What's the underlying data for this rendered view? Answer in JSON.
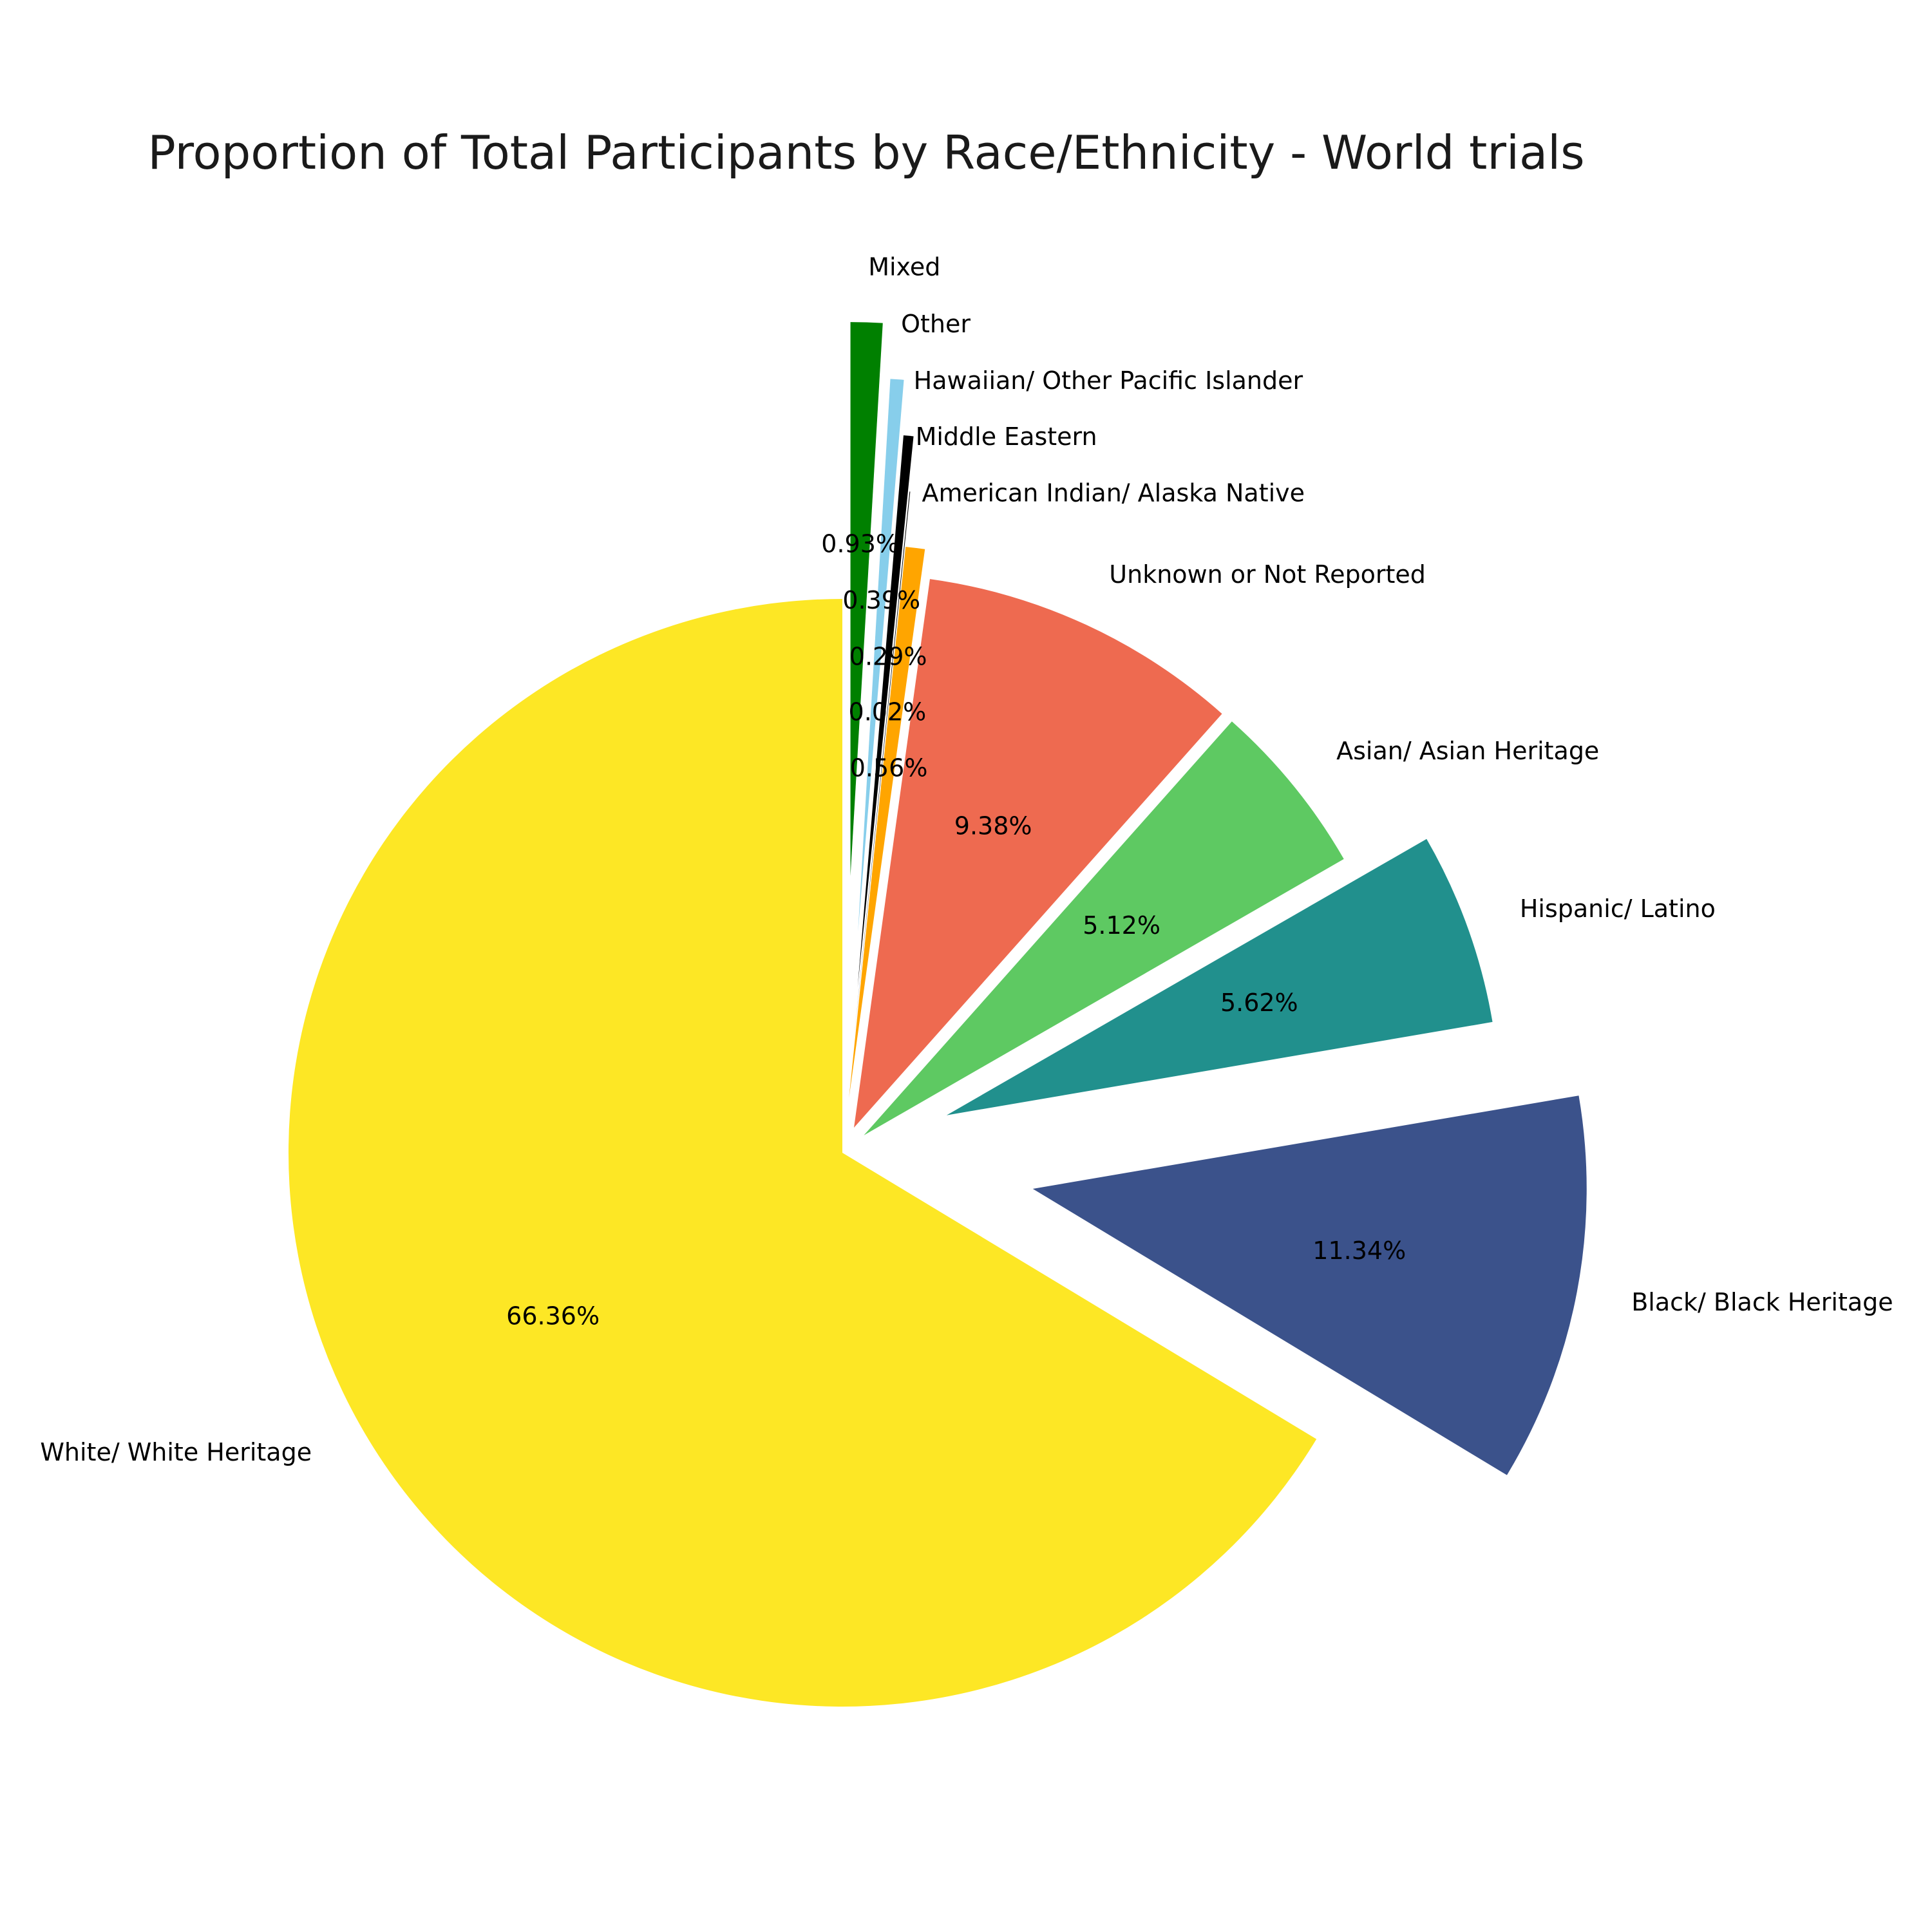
{
  "chart_data": {
    "type": "pie",
    "title": "Proportion of Total Participants by Race/Ethnicity - World trials",
    "start_angle_deg": 90,
    "direction": "clockwise",
    "slices": [
      {
        "label": "Mixed",
        "value": 0.93,
        "pct_label": "0.93%",
        "color": "#008000",
        "explode": 0.5
      },
      {
        "label": "Other",
        "value": 0.39,
        "pct_label": "0.39%",
        "color": "#87CEEB",
        "explode": 0.4
      },
      {
        "label": "Hawaiian/ Other Pacific Islander",
        "value": 0.29,
        "pct_label": "0.29%",
        "color": "#000000",
        "explode": 0.3
      },
      {
        "label": "Middle Eastern",
        "value": 0.02,
        "pct_label": "0.02%",
        "color": "#000000",
        "explode": 0.2
      },
      {
        "label": "American Indian/ Alaska Native",
        "value": 0.56,
        "pct_label": "0.56%",
        "color": "#FFA500",
        "explode": 0.1
      },
      {
        "label": "Unknown or Not Reported",
        "value": 9.38,
        "pct_label": "9.38%",
        "color": "#EE6A50",
        "explode": 0.05
      },
      {
        "label": "Asian/ Asian Heritage",
        "value": 5.12,
        "pct_label": "5.12%",
        "color": "#5EC962",
        "explode": 0.05
      },
      {
        "label": "Hispanic/ Latino",
        "value": 5.62,
        "pct_label": "5.62%",
        "color": "#21908D",
        "explode": 0.2
      },
      {
        "label": "Black/ Black Heritage",
        "value": 11.34,
        "pct_label": "11.34%",
        "color": "#3B528B",
        "explode": 0.35
      },
      {
        "label": "White/ White Heritage",
        "value": 66.36,
        "pct_label": "66.36%",
        "color": "#FDE725",
        "explode": 0
      }
    ]
  }
}
